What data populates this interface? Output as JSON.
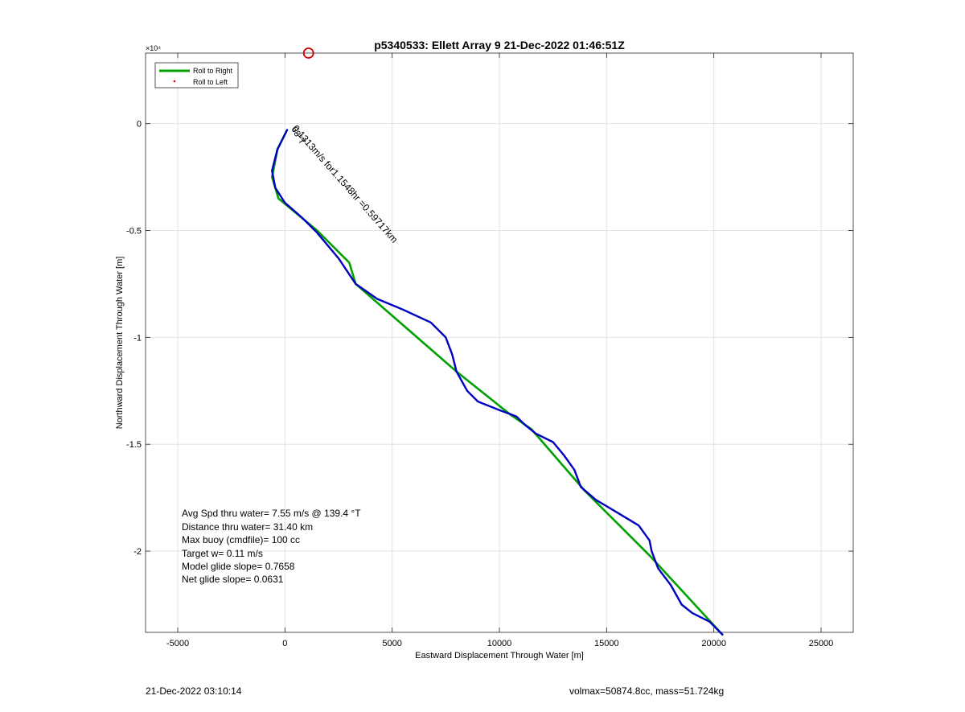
{
  "chart_data": {
    "type": "line",
    "title": "p5340533: Ellett Array 9 21-Dec-2022 01:46:51Z",
    "xlabel": "Eastward Displacement Through Water [m]",
    "ylabel": "Northward Displacement Through Water [m]",
    "exponent_label": "×10⁴",
    "xlim": [
      -6500,
      26500
    ],
    "ylim": [
      -23800,
      3300
    ],
    "xticks": [
      -5000,
      0,
      5000,
      10000,
      15000,
      20000,
      25000
    ],
    "xtick_labels": [
      "-5000",
      "0",
      "5000",
      "10000",
      "15000",
      "20000",
      "25000"
    ],
    "yticks": [
      0,
      -5000,
      -10000,
      -15000,
      -20000
    ],
    "ytick_labels": [
      "0",
      "-0.5",
      "-1",
      "-1.5",
      "-2"
    ],
    "grid": true,
    "legend_placement": "top-left",
    "legend": [
      {
        "name": "Roll to Right",
        "color": "#00a000",
        "style": "line"
      },
      {
        "name": "Roll to Left",
        "color": "#e00000",
        "style": "dot"
      }
    ],
    "series": [
      {
        "name": "",
        "color": "#00a000",
        "x": [
          100,
          -350,
          -600,
          -300,
          1500,
          3000,
          3300,
          8000,
          10500,
          11500,
          14000,
          17000,
          20400
        ],
        "y": [
          -300,
          -1200,
          -2500,
          -3500,
          -5000,
          -6500,
          -7500,
          -11600,
          -13600,
          -14300,
          -17200,
          -20200,
          -23900
        ]
      },
      {
        "name": "",
        "color": "#0000c0",
        "x": [
          100,
          -350,
          -600,
          -450,
          0,
          800,
          1500,
          2500,
          3300,
          4300,
          5500,
          6800,
          7500,
          7800,
          8000,
          8500,
          9000,
          10000,
          10800,
          11200,
          11700,
          12500,
          13000,
          13500,
          13800,
          14500,
          15500,
          16500,
          17000,
          17100,
          17400,
          18000,
          18500,
          19000,
          19800,
          20400
        ],
        "y": [
          -300,
          -1200,
          -2200,
          -3000,
          -3700,
          -4400,
          -5100,
          -6300,
          -7500,
          -8200,
          -8700,
          -9300,
          -10000,
          -10800,
          -11600,
          -12500,
          -13000,
          -13400,
          -13700,
          -14100,
          -14500,
          -14900,
          -15500,
          -16200,
          -17000,
          -17600,
          -18200,
          -18800,
          -19500,
          -20000,
          -20800,
          -21600,
          -22500,
          -22900,
          -23300,
          -23900
        ]
      }
    ],
    "markers": [
      {
        "name": "",
        "x": 1100,
        "y": 3300,
        "color": "#d00000",
        "style": "circle"
      }
    ],
    "rotated_annotation": "0.1313m/s for1.1548hr =0.59717km",
    "overlap_annotation": "68°T",
    "stats": [
      "Avg Spd thru water=  7.55 m/s @ 139.4 °T",
      "Distance thru water= 31.40 km",
      "Max buoy (cmdfile)= 100 cc",
      "Target w= 0.11 m/s",
      "Model glide slope= 0.7658",
      "Net glide slope= 0.0631"
    ]
  },
  "footer": {
    "timestamp": "21-Dec-2022 03:10:14",
    "vol_mass": "volmax=50874.8cc, mass=51.724kg"
  }
}
